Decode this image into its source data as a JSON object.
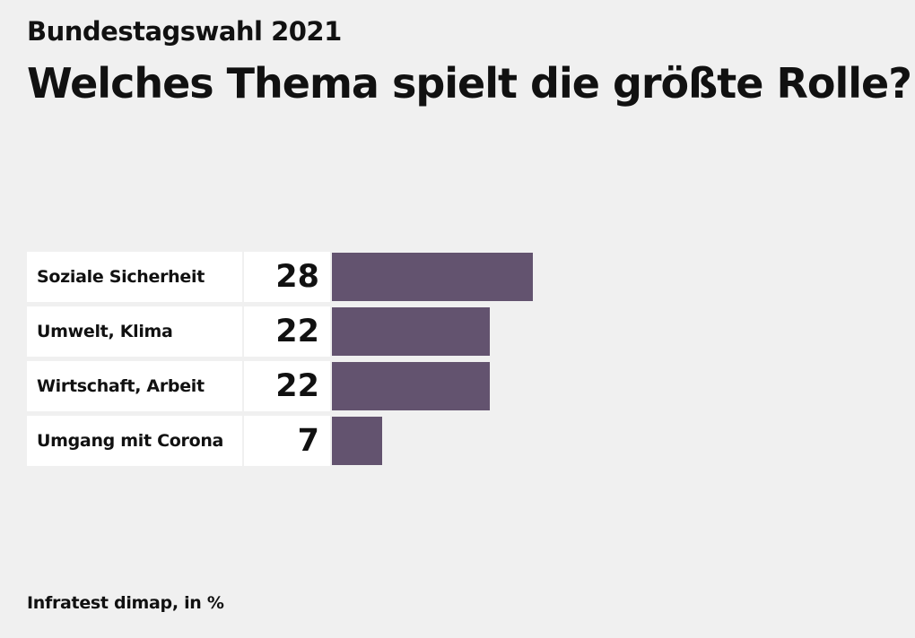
{
  "header": {
    "subtitle": "Bundestagswahl 2021",
    "title": "Welches Thema spielt die größte Rolle?"
  },
  "chart_data": {
    "type": "bar",
    "orientation": "horizontal",
    "categories": [
      "Soziale Sicherheit",
      "Umwelt, Klima",
      "Wirtschaft, Arbeit",
      "Umgang mit Corona"
    ],
    "values": [
      28,
      22,
      22,
      7
    ],
    "title": "Welches Thema spielt die größte Rolle?",
    "subtitle": "Bundestagswahl 2021",
    "xlim": [
      0,
      100
    ],
    "grid": false,
    "bar_color": "#63536f"
  },
  "footer": {
    "source": "Infratest dimap, in %"
  }
}
